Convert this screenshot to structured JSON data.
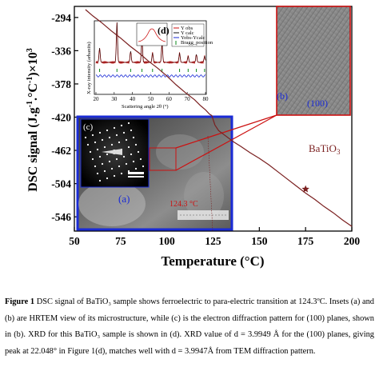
{
  "chart_data": {
    "type": "line",
    "title": "",
    "xlabel": "Temperature (°C)",
    "ylabel": "DSC signal (J.g⁻¹.°C⁻¹)×10³",
    "xlim": [
      50,
      200
    ],
    "ylim": [
      -564,
      -280
    ],
    "x_ticks": [
      "50",
      "75",
      "100",
      "125",
      "150",
      "175",
      "200"
    ],
    "y_ticks": [
      "-294",
      "-336",
      "-378",
      "-420",
      "-462",
      "-504",
      "-546"
    ],
    "series": [
      {
        "color": "#7a1f1f",
        "x": [
          56,
          60,
          65,
          70,
          75,
          80,
          85,
          90,
          95,
          100,
          105,
          110,
          115,
          118,
          121,
          123,
          124.3,
          126,
          128,
          132,
          136,
          140,
          145,
          150,
          155,
          160,
          165,
          170,
          175,
          180,
          185,
          190,
          195,
          200
        ],
        "y": [
          -284,
          -292,
          -301,
          -311,
          -320,
          -330,
          -339,
          -349,
          -358,
          -368,
          -379,
          -389,
          -398,
          -405,
          -411,
          -416,
          -418,
          -430,
          -437,
          -444,
          -451,
          -457,
          -465,
          -472,
          -480,
          -489,
          -498,
          -507,
          -516,
          -524,
          -533,
          -541,
          -550,
          -558
        ]
      }
    ],
    "annotations": [
      "BaTiO₃",
      "124.3 °C"
    ],
    "markers": [
      {
        "x": 175,
        "y": -511,
        "symbol": "star"
      }
    ],
    "grid": false,
    "legend": "none"
  },
  "inset_d": {
    "label": "(d)",
    "ylabel": "X-ray intensity (arbanits)",
    "xlabel": "Scattering angle 2θ (°)",
    "x_ticks": [
      "20",
      "30",
      "40",
      "50",
      "60",
      "70",
      "80"
    ],
    "legend": [
      "Y obs",
      "Y calc",
      "Yobs-Ycalc",
      "Bragg_position"
    ]
  },
  "inset_c": {
    "label": "(c)"
  },
  "inset_a": {
    "label": "(a)",
    "footer": "124.3 °C"
  },
  "inset_b": {
    "label": "(b)",
    "plane": "(100)"
  },
  "caption": {
    "label": "Figure 1",
    "text": " DSC signal of BaTiO₃ sample shows ferroelectric to para-electric transition at 124.3ºC. Insets (a) and (b) are HRTEM view of its microstructure, while (c) is the electron diffraction pattern for (100) planes, shown in (b). XRD for this BaTiO₃ sample is shown in (d). XRD value of d = 3.9949 Å for the (100) planes, giving peak at 22.048° in Figure 1(d), matches well with d = 3.9947Å from TEM diffraction pattern."
  }
}
